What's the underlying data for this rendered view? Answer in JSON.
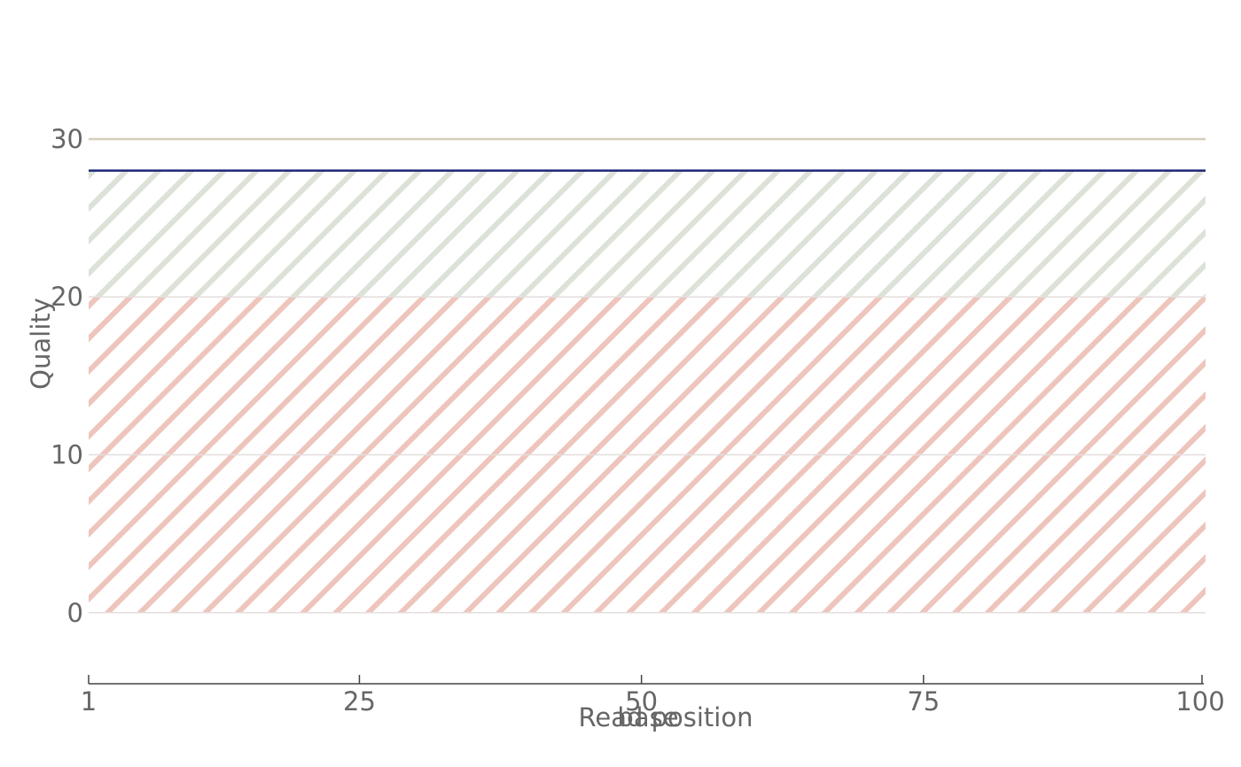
{
  "chart_data": {
    "type": "line",
    "title": "",
    "xlabel": "Read position",
    "xlabel_overlay": "base",
    "ylabel": "Quality",
    "xlim": [
      1,
      100
    ],
    "ylim": [
      -4.5,
      36
    ],
    "x_ticks": [
      1,
      25,
      50,
      75,
      100
    ],
    "y_ticks": [
      0,
      10,
      20,
      30
    ],
    "grid": "horizontal",
    "threshold_bands": [
      {
        "from": 0,
        "to": 20,
        "color": "#e8b2a6",
        "pattern": "diagonal-hatch"
      },
      {
        "from": 20,
        "to": 28,
        "color": "#d2d8cb",
        "pattern": "diagonal-hatch"
      }
    ],
    "reference_line": {
      "y": 30,
      "color": "#d6cdb9"
    },
    "series": [
      {
        "x": [
          1,
          100
        ],
        "values": [
          28,
          28
        ],
        "color": "#1c2778"
      }
    ]
  }
}
